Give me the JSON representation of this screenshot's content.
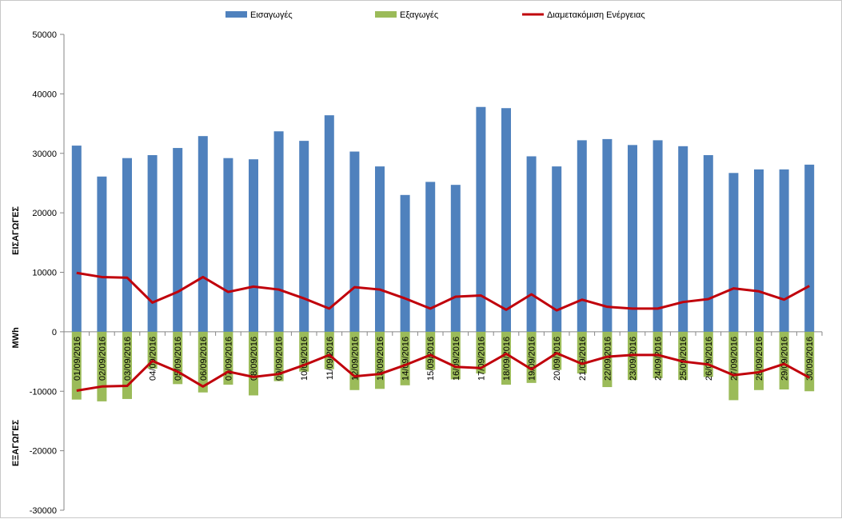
{
  "chart_data": {
    "type": "bar",
    "title": "",
    "categories": [
      "01/09/2016",
      "02/09/2016",
      "03/09/2016",
      "04/09/2016",
      "05/09/2016",
      "06/09/2016",
      "07/09/2016",
      "08/09/2016",
      "09/09/2016",
      "10/09/2016",
      "11/09/2016",
      "12/09/2016",
      "13/09/2016",
      "14/09/2016",
      "15/09/2016",
      "16/09/2016",
      "17/09/2016",
      "18/09/2016",
      "19/09/2016",
      "20/09/2016",
      "21/09/2016",
      "22/09/2016",
      "23/09/2016",
      "24/09/2016",
      "25/09/2016",
      "26/09/2016",
      "27/09/2016",
      "28/09/2016",
      "29/09/2016",
      "30/09/2016"
    ],
    "series": [
      {
        "name": "Εισαγωγές",
        "type": "bar",
        "color": "#4f81bd",
        "values": [
          31300,
          26100,
          29200,
          29700,
          30900,
          32900,
          29200,
          29000,
          33700,
          32100,
          36400,
          30300,
          27800,
          23000,
          25200,
          24700,
          37800,
          37600,
          29500,
          27800,
          32200,
          32400,
          31400,
          32200,
          31200,
          29700,
          26700,
          27300,
          27300,
          28100
        ]
      },
      {
        "name": "Εξαγωγές",
        "type": "bar",
        "color": "#9bbb59",
        "values": [
          -11400,
          -11700,
          -11300,
          -6200,
          -8800,
          -10200,
          -8900,
          -10700,
          -8300,
          -6700,
          -6300,
          -9800,
          -9600,
          -9000,
          -6400,
          -8000,
          -7000,
          -8900,
          -8600,
          -6400,
          -7000,
          -9300,
          -8100,
          -7800,
          -8100,
          -7600,
          -11500,
          -9800,
          -9700,
          -10000
        ]
      },
      {
        "name": "Διαμετακόμιση  Ενέργειας",
        "type": "line",
        "color": "#c0000b",
        "values": [
          9900,
          9200,
          9100,
          4900,
          6700,
          9200,
          6700,
          7600,
          7100,
          5600,
          3900,
          7500,
          7100,
          5600,
          3900,
          5900,
          6100,
          3700,
          6300,
          3600,
          5400,
          4200,
          3900,
          3900,
          5000,
          5500,
          7300,
          6800,
          5400,
          7700
        ],
        "mirrored": true
      }
    ],
    "ylabel": "MWh",
    "ylabel_upper": "ΕΙΣΑΓΩΓΕΣ",
    "ylabel_lower": "ΕΞΑΓΩΓΕΣ",
    "ylim": [
      -30000,
      50000
    ],
    "yticks": [
      50000,
      40000,
      30000,
      20000,
      10000,
      0,
      -10000,
      -20000,
      -30000
    ],
    "ytick_labels": [
      "50000",
      "40000",
      "30000",
      "20000",
      "10000",
      "0",
      "-10000",
      "-20000",
      "-30000"
    ],
    "grid": false,
    "legend_position": "top"
  }
}
